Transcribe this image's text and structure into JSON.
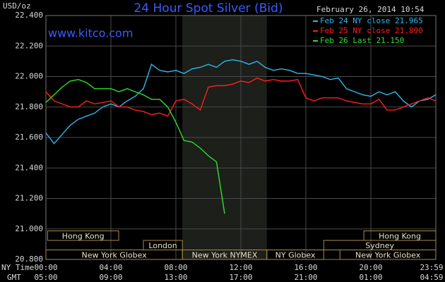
{
  "chart_data": {
    "type": "line",
    "title": "24 Hour Spot Silver (Bid)",
    "site": "www.kitco.com",
    "y_label": "USD/oz",
    "timestamp": "February 26, 2014 10:54",
    "x_row_label": "NY Time",
    "x2_row_label": "GMT",
    "x": [
      0,
      0.5,
      1,
      1.5,
      2,
      2.5,
      3,
      3.5,
      4,
      4.5,
      5,
      5.5,
      6,
      6.5,
      7,
      7.5,
      8,
      8.5,
      9,
      9.5,
      10,
      10.5,
      11,
      11.5,
      12,
      12.5,
      13,
      13.5,
      14,
      14.5,
      15,
      15.5,
      16,
      16.5,
      17,
      17.5,
      18,
      18.5,
      19,
      19.5,
      20,
      20.5,
      21,
      21.5,
      22,
      22.5,
      23,
      23.5,
      24
    ],
    "xlim": [
      0,
      24
    ],
    "xticks": [
      {
        "value": 0,
        "label": "00:00"
      },
      {
        "value": 4,
        "label": "04:00"
      },
      {
        "value": 8,
        "label": "08:00"
      },
      {
        "value": 12,
        "label": "12:00"
      },
      {
        "value": 16,
        "label": "16:00"
      },
      {
        "value": 20,
        "label": "20:00"
      },
      {
        "value": 24,
        "label": "23:59"
      }
    ],
    "x2ticks": [
      "05:00",
      "09:00",
      "13:00",
      "17:00",
      "21:00",
      "01:00",
      "04:59"
    ],
    "ylim": [
      20.8,
      22.4
    ],
    "yticks": [
      {
        "value": 20.8,
        "label": "20.800"
      },
      {
        "value": 21.0,
        "label": "21.000"
      },
      {
        "value": 21.2,
        "label": "21.200"
      },
      {
        "value": 21.4,
        "label": "21.400"
      },
      {
        "value": 21.6,
        "label": "21.600"
      },
      {
        "value": 21.8,
        "label": "21.800"
      },
      {
        "value": 22.0,
        "label": "22.000"
      },
      {
        "value": 22.2,
        "label": "22.200"
      },
      {
        "value": 22.4,
        "label": "22.400"
      }
    ],
    "grid": true,
    "highlight": [
      8.4,
      13.6
    ],
    "sessions": [
      [
        {
          "label": "Hong Kong",
          "start": 0.1,
          "end": 4.48
        },
        {
          "label": "Hong Kong",
          "start": 19.57,
          "end": 24
        }
      ],
      [
        {
          "label": "London",
          "start": 6.0,
          "end": 8.4
        },
        {
          "label": "Sydney",
          "start": 17.1,
          "end": 24
        }
      ],
      [
        {
          "label": "New York Globex",
          "start": 0,
          "end": 8.4
        },
        {
          "label": "New York NYMEX",
          "start": 8.4,
          "end": 13.6
        },
        {
          "label": "NY Globex",
          "start": 13.6,
          "end": 17.1
        },
        {
          "label": "New York Globex",
          "start": 18.1,
          "end": 24
        }
      ]
    ],
    "series": [
      {
        "name": "Feb 24 NY close 21.965",
        "color": "#2fb8ee",
        "values": [
          21.63,
          21.56,
          21.62,
          21.68,
          21.72,
          21.74,
          21.76,
          21.8,
          21.82,
          21.8,
          21.84,
          21.87,
          21.92,
          22.08,
          22.04,
          22.03,
          22.04,
          22.02,
          22.05,
          22.06,
          22.08,
          22.06,
          22.1,
          22.11,
          22.1,
          22.08,
          22.1,
          22.06,
          22.04,
          22.05,
          22.04,
          22.02,
          22.02,
          22.01,
          22.0,
          21.98,
          21.99,
          21.92,
          21.9,
          21.88,
          21.87,
          21.9,
          21.88,
          21.9,
          21.84,
          21.8,
          21.84,
          21.85,
          21.88
        ]
      },
      {
        "name": "Feb 25 NY close 21.890",
        "color": "#ff1e1e",
        "values": [
          21.9,
          21.84,
          21.82,
          21.8,
          21.8,
          21.84,
          21.82,
          21.83,
          21.84,
          21.8,
          21.8,
          21.78,
          21.77,
          21.75,
          21.76,
          21.74,
          21.84,
          21.85,
          21.82,
          21.78,
          21.93,
          21.94,
          21.94,
          21.95,
          21.97,
          21.96,
          21.99,
          21.97,
          21.98,
          21.97,
          21.97,
          21.98,
          21.86,
          21.84,
          21.86,
          21.86,
          21.86,
          21.84,
          21.83,
          21.82,
          21.82,
          21.85,
          21.78,
          21.78,
          21.8,
          21.82,
          21.84,
          21.86,
          21.84
        ]
      },
      {
        "name": "Feb 26 Last 21.150",
        "color": "#2ee02e",
        "values": [
          21.83,
          21.88,
          21.93,
          21.97,
          21.98,
          21.96,
          21.92,
          21.92,
          21.92,
          21.9,
          21.92,
          21.9,
          21.88,
          21.85,
          21.85,
          21.8,
          21.7,
          21.58,
          21.57,
          21.53,
          21.48,
          21.44,
          21.1,
          null,
          null,
          null,
          null,
          null,
          null,
          null,
          null,
          null,
          null,
          null,
          null,
          null,
          null,
          null,
          null,
          null,
          null,
          null,
          null,
          null,
          null,
          null,
          null,
          null,
          null
        ]
      }
    ]
  }
}
